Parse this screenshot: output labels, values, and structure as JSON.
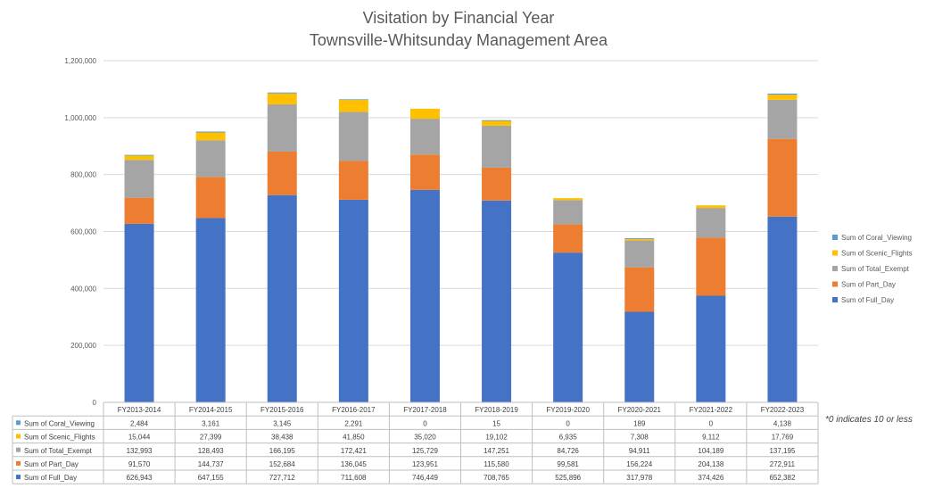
{
  "chart_data": {
    "type": "bar",
    "stacked": true,
    "title": "Visitation by Financial Year",
    "subtitle": "Townsville-Whitsunday Management Area",
    "xlabel": "",
    "ylabel": "",
    "ylim": [
      0,
      1200000
    ],
    "yticks": [
      "0",
      "200,000",
      "400,000",
      "600,000",
      "800,000",
      "1,000,000",
      "1,200,000"
    ],
    "grid": true,
    "legend_position": "right",
    "categories": [
      "FY2013-2014",
      "FY2014-2015",
      "FY2015-2016",
      "FY2016-2017",
      "FY2017-2018",
      "FY2018-2019",
      "FY2019-2020",
      "FY2020-2021",
      "FY2021-2022",
      "FY2022-2023"
    ],
    "series": [
      {
        "name": "Sum of Full_Day",
        "color": "#4472c4",
        "values": [
          626943,
          647155,
          727712,
          711608,
          746449,
          708765,
          525896,
          317978,
          374426,
          652382
        ],
        "labels": [
          "626,943",
          "647,155",
          "727,712",
          "711,608",
          "746,449",
          "708,765",
          "525,896",
          "317,978",
          "374,426",
          "652,382"
        ]
      },
      {
        "name": "Sum of Part_Day",
        "color": "#ed7d31",
        "values": [
          91570,
          144737,
          152684,
          136045,
          123951,
          115580,
          99581,
          156224,
          204138,
          272911
        ],
        "labels": [
          "91,570",
          "144,737",
          "152,684",
          "136,045",
          "123,951",
          "115,580",
          "99,581",
          "156,224",
          "204,138",
          "272,911"
        ]
      },
      {
        "name": "Sum of Total_Exempt",
        "color": "#a5a5a5",
        "values": [
          132993,
          128493,
          166195,
          172421,
          125729,
          147251,
          84726,
          94911,
          104189,
          137195
        ],
        "labels": [
          "132,993",
          "128,493",
          "166,195",
          "172,421",
          "125,729",
          "147,251",
          "84,726",
          "94,911",
          "104,189",
          "137,195"
        ]
      },
      {
        "name": "Sum of Scenic_Flights",
        "color": "#ffc000",
        "values": [
          15044,
          27399,
          38438,
          41850,
          35020,
          19102,
          6935,
          7308,
          9112,
          17769
        ],
        "labels": [
          "15,044",
          "27,399",
          "38,438",
          "41,850",
          "35,020",
          "19,102",
          "6,935",
          "7,308",
          "9,112",
          "17,769"
        ]
      },
      {
        "name": "Sum of Coral_Viewing",
        "color": "#5b9bd5",
        "values": [
          2484,
          3161,
          3145,
          2291,
          0,
          15,
          0,
          189,
          0,
          4138
        ],
        "labels": [
          "2,484",
          "3,161",
          "3,145",
          "2,291",
          "0",
          "15",
          "0",
          "189",
          "0",
          "4,138"
        ]
      }
    ],
    "annotation": "*0 indicates 10 or less"
  }
}
